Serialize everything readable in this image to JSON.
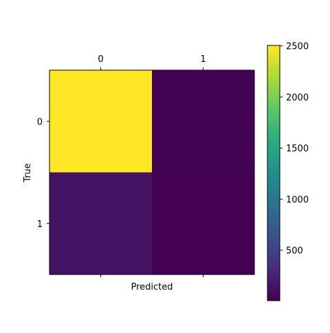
{
  "chart_data": {
    "type": "heatmap",
    "title": "",
    "xlabel": "Predicted",
    "ylabel": "True",
    "x_categories": [
      "0",
      "1"
    ],
    "y_categories": [
      "0",
      "1"
    ],
    "values": [
      [
        2505,
        10
      ],
      [
        135,
        6
      ]
    ],
    "colormap": "viridis",
    "color_range": [
      6,
      2505
    ],
    "colorbar": {
      "ticks": [
        500,
        1000,
        1500,
        2000,
        2500
      ],
      "tick_labels": [
        "500",
        "1000",
        "1500",
        "2000",
        "2500"
      ]
    },
    "grid": false,
    "x_tick_position": "top"
  }
}
